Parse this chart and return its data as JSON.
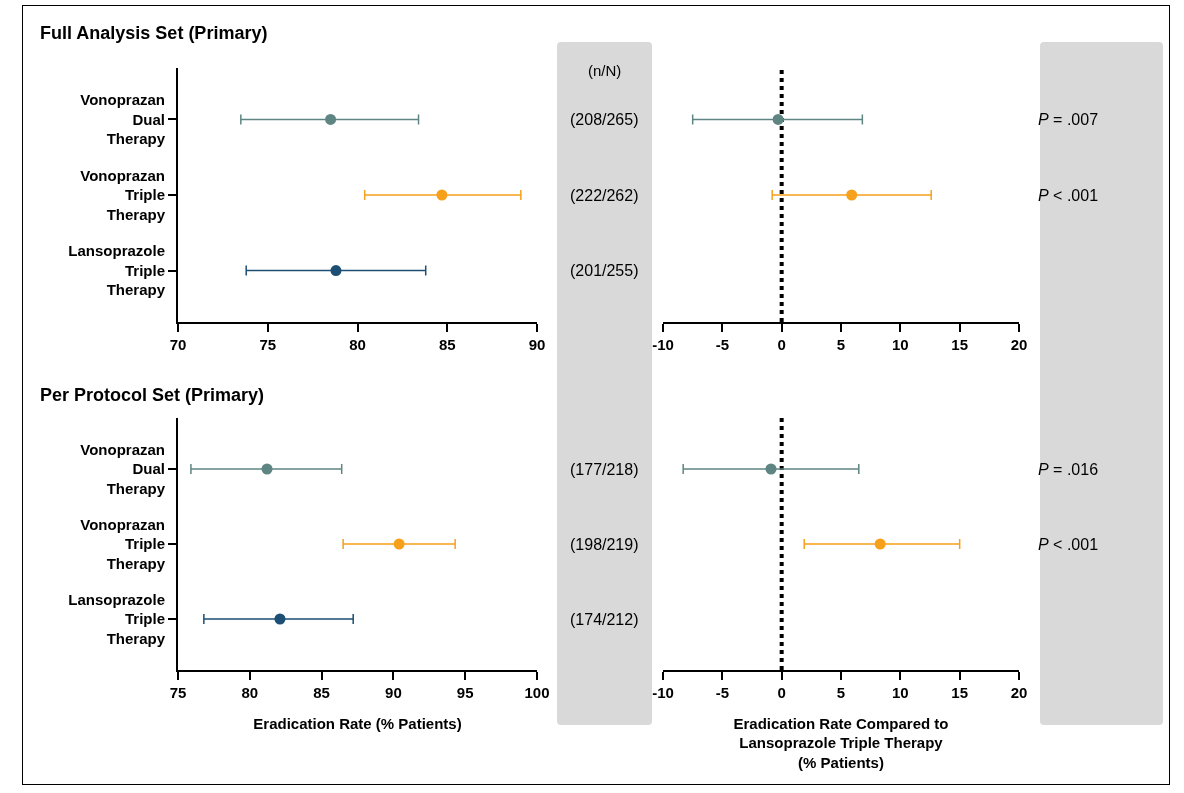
{
  "chart_data": [
    {
      "type": "scatter",
      "orientation": "horizontal",
      "title": "Full Analysis Set (Primary)",
      "categories": [
        "Vonoprazan Dual Therapy",
        "Vonoprazan Triple Therapy",
        "Lansoprazole Triple Therapy"
      ],
      "colors": [
        "#5f8582",
        "#f7a01c",
        "#1d4e74"
      ],
      "marker": "circle",
      "xlim": [
        70,
        90
      ],
      "xticks": [
        70,
        75,
        80,
        85,
        90
      ],
      "series": [
        {
          "values": [
            78.5,
            84.7,
            78.8
          ],
          "errors": [
            [
              73.5,
              83.4
            ],
            [
              80.4,
              89.1
            ],
            [
              73.8,
              83.8
            ]
          ]
        }
      ],
      "annotations": [
        "(n/N)",
        "(208/265)",
        "(222/262)",
        "(201/255)"
      ]
    },
    {
      "type": "scatter",
      "orientation": "horizontal",
      "categories": [
        null,
        null,
        null
      ],
      "colors": [
        "#5f8582",
        "#f7a01c"
      ],
      "marker": "circle",
      "xlim": [
        -10,
        20
      ],
      "xticks": [
        -10,
        -5,
        0,
        5,
        10,
        15,
        20
      ],
      "tick_labels": "x",
      "series": [
        {
          "values": [
            -0.3,
            5.9,
            null
          ],
          "errors": [
            [
              -7.5,
              6.8
            ],
            [
              -0.8,
              12.6
            ],
            null
          ]
        }
      ],
      "ref_lines": [
        {
          "axis": "x",
          "value": 0,
          "color": "#000000",
          "line_style": "dotted"
        }
      ],
      "annotations": [
        "P = .007",
        "P < .001"
      ]
    },
    {
      "type": "scatter",
      "orientation": "horizontal",
      "title": "Per Protocol Set (Primary)",
      "xlabel": "Eradication Rate (% Patients)",
      "categories": [
        "Vonoprazan Dual Therapy",
        "Vonoprazan Triple Therapy",
        "Lansoprazole Triple Therapy"
      ],
      "colors": [
        "#5f8582",
        "#f7a01c",
        "#1d4e74"
      ],
      "marker": "circle",
      "xlim": [
        75,
        100
      ],
      "xticks": [
        75,
        80,
        85,
        90,
        95,
        100
      ],
      "series": [
        {
          "values": [
            81.2,
            90.4,
            82.1
          ],
          "errors": [
            [
              75.9,
              86.4
            ],
            [
              86.5,
              94.3
            ],
            [
              76.8,
              87.2
            ]
          ]
        }
      ],
      "annotations": [
        "(177/218)",
        "(198/219)",
        "(174/212)"
      ]
    },
    {
      "type": "scatter",
      "orientation": "horizontal",
      "xlabel": "Eradication Rate Compared to\nLansoprazole Triple Therapy\n(% Patients)",
      "categories": [
        null,
        null,
        null
      ],
      "colors": [
        "#5f8582",
        "#f7a01c"
      ],
      "marker": "circle",
      "xlim": [
        -10,
        20
      ],
      "xticks": [
        -10,
        -5,
        0,
        5,
        10,
        15,
        20
      ],
      "tick_labels": "x",
      "series": [
        {
          "values": [
            -0.9,
            8.3,
            null
          ],
          "errors": [
            [
              -8.3,
              6.5
            ],
            [
              1.9,
              15.0
            ],
            null
          ]
        }
      ],
      "ref_lines": [
        {
          "axis": "x",
          "value": 0,
          "color": "#000000",
          "line_style": "dotted"
        }
      ],
      "annotations": [
        "P = .016",
        "P < .001"
      ]
    }
  ]
}
